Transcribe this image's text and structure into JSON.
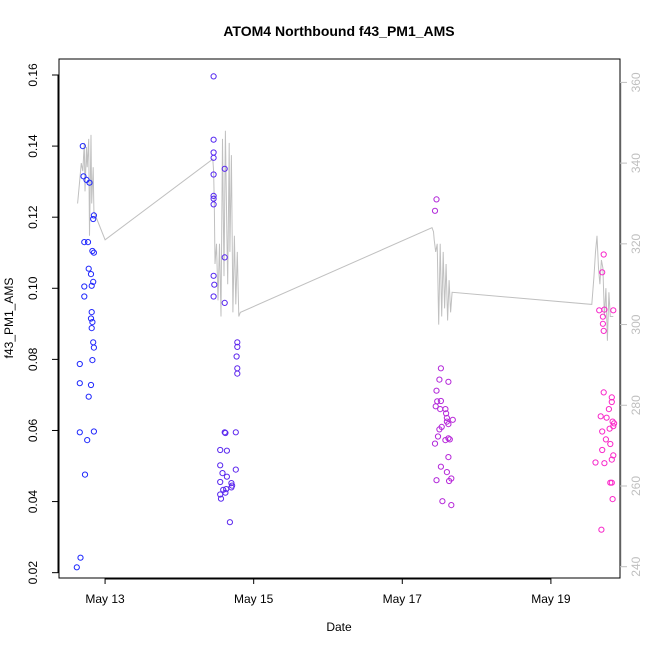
{
  "chart_data": {
    "type": "scatter",
    "title": "ATOM4 Northbound f43_PM1_AMS",
    "xlabel": "Date",
    "ylabel": "f43_PM1_AMS",
    "xlim": [
      12.38,
      19.93
    ],
    "ylim": [
      0.0185,
      0.1645
    ],
    "y2lim": [
      237.2,
      365.8
    ],
    "x_ticks": [
      {
        "value": 13,
        "label": "May 13"
      },
      {
        "value": 15,
        "label": "May 15"
      },
      {
        "value": 17,
        "label": "May 17"
      },
      {
        "value": 19,
        "label": "May 19"
      }
    ],
    "y_ticks": [
      {
        "value": 0.02,
        "label": "0.02"
      },
      {
        "value": 0.04,
        "label": "0.04"
      },
      {
        "value": 0.06,
        "label": "0.06"
      },
      {
        "value": 0.08,
        "label": "0.08"
      },
      {
        "value": 0.1,
        "label": "0.10"
      },
      {
        "value": 0.12,
        "label": "0.12"
      },
      {
        "value": 0.14,
        "label": "0.14"
      },
      {
        "value": 0.16,
        "label": "0.16"
      }
    ],
    "y2_ticks": [
      {
        "value": 240,
        "label": "240"
      },
      {
        "value": 260,
        "label": "260"
      },
      {
        "value": 280,
        "label": "280"
      },
      {
        "value": 300,
        "label": "300"
      },
      {
        "value": 320,
        "label": "320"
      },
      {
        "value": 340,
        "label": "340"
      },
      {
        "value": 360,
        "label": "360"
      }
    ],
    "points": [
      {
        "x": 12.62,
        "y": 0.0215
      },
      {
        "x": 12.67,
        "y": 0.0242
      },
      {
        "x": 12.66,
        "y": 0.0787
      },
      {
        "x": 12.66,
        "y": 0.0733
      },
      {
        "x": 12.66,
        "y": 0.0595
      },
      {
        "x": 12.7,
        "y": 0.14
      },
      {
        "x": 12.71,
        "y": 0.1315
      },
      {
        "x": 12.75,
        "y": 0.1305
      },
      {
        "x": 12.79,
        "y": 0.1297
      },
      {
        "x": 12.72,
        "y": 0.113
      },
      {
        "x": 12.77,
        "y": 0.113
      },
      {
        "x": 12.78,
        "y": 0.1055
      },
      {
        "x": 12.81,
        "y": 0.104
      },
      {
        "x": 12.83,
        "y": 0.1105
      },
      {
        "x": 12.85,
        "y": 0.11
      },
      {
        "x": 12.84,
        "y": 0.1195
      },
      {
        "x": 12.85,
        "y": 0.1205
      },
      {
        "x": 12.72,
        "y": 0.1005
      },
      {
        "x": 12.82,
        "y": 0.1007
      },
      {
        "x": 12.84,
        "y": 0.1018
      },
      {
        "x": 12.72,
        "y": 0.0977
      },
      {
        "x": 12.82,
        "y": 0.0933
      },
      {
        "x": 12.81,
        "y": 0.0915
      },
      {
        "x": 12.83,
        "y": 0.0905
      },
      {
        "x": 12.82,
        "y": 0.0888
      },
      {
        "x": 12.84,
        "y": 0.0848
      },
      {
        "x": 12.85,
        "y": 0.0833
      },
      {
        "x": 12.83,
        "y": 0.0798
      },
      {
        "x": 12.81,
        "y": 0.0728
      },
      {
        "x": 12.78,
        "y": 0.0695
      },
      {
        "x": 12.76,
        "y": 0.0573
      },
      {
        "x": 12.85,
        "y": 0.0597
      },
      {
        "x": 12.73,
        "y": 0.0476
      },
      {
        "x": 14.46,
        "y": 0.1596
      },
      {
        "x": 14.46,
        "y": 0.1418
      },
      {
        "x": 14.46,
        "y": 0.1382
      },
      {
        "x": 14.46,
        "y": 0.1367
      },
      {
        "x": 14.46,
        "y": 0.132
      },
      {
        "x": 14.46,
        "y": 0.126
      },
      {
        "x": 14.46,
        "y": 0.1252
      },
      {
        "x": 14.46,
        "y": 0.1236
      },
      {
        "x": 14.46,
        "y": 0.1035
      },
      {
        "x": 14.47,
        "y": 0.101
      },
      {
        "x": 14.46,
        "y": 0.0977
      },
      {
        "x": 14.61,
        "y": 0.1336
      },
      {
        "x": 14.61,
        "y": 0.1087
      },
      {
        "x": 14.61,
        "y": 0.0959
      },
      {
        "x": 14.78,
        "y": 0.0848
      },
      {
        "x": 14.78,
        "y": 0.0835
      },
      {
        "x": 14.77,
        "y": 0.0808
      },
      {
        "x": 14.78,
        "y": 0.0775
      },
      {
        "x": 14.78,
        "y": 0.076
      },
      {
        "x": 14.61,
        "y": 0.0595
      },
      {
        "x": 14.62,
        "y": 0.0593
      },
      {
        "x": 14.76,
        "y": 0.0595
      },
      {
        "x": 14.55,
        "y": 0.0545
      },
      {
        "x": 14.64,
        "y": 0.0543
      },
      {
        "x": 14.55,
        "y": 0.0502
      },
      {
        "x": 14.76,
        "y": 0.049
      },
      {
        "x": 14.58,
        "y": 0.048
      },
      {
        "x": 14.64,
        "y": 0.047
      },
      {
        "x": 14.55,
        "y": 0.0455
      },
      {
        "x": 14.7,
        "y": 0.0452
      },
      {
        "x": 14.71,
        "y": 0.0445
      },
      {
        "x": 14.7,
        "y": 0.044
      },
      {
        "x": 14.63,
        "y": 0.0435
      },
      {
        "x": 14.59,
        "y": 0.0433
      },
      {
        "x": 14.55,
        "y": 0.042
      },
      {
        "x": 14.62,
        "y": 0.0425
      },
      {
        "x": 14.56,
        "y": 0.0408
      },
      {
        "x": 14.68,
        "y": 0.0342
      },
      {
        "x": 17.46,
        "y": 0.125
      },
      {
        "x": 17.44,
        "y": 0.1218
      },
      {
        "x": 17.52,
        "y": 0.0775
      },
      {
        "x": 17.5,
        "y": 0.0743
      },
      {
        "x": 17.62,
        "y": 0.0737
      },
      {
        "x": 17.46,
        "y": 0.0712
      },
      {
        "x": 17.47,
        "y": 0.0682
      },
      {
        "x": 17.52,
        "y": 0.0683
      },
      {
        "x": 17.45,
        "y": 0.0668
      },
      {
        "x": 17.51,
        "y": 0.066
      },
      {
        "x": 17.58,
        "y": 0.066
      },
      {
        "x": 17.59,
        "y": 0.0648
      },
      {
        "x": 17.6,
        "y": 0.0635
      },
      {
        "x": 17.68,
        "y": 0.063
      },
      {
        "x": 17.6,
        "y": 0.0625
      },
      {
        "x": 17.62,
        "y": 0.0618
      },
      {
        "x": 17.53,
        "y": 0.061
      },
      {
        "x": 17.5,
        "y": 0.0603
      },
      {
        "x": 17.48,
        "y": 0.0583
      },
      {
        "x": 17.62,
        "y": 0.0578
      },
      {
        "x": 17.64,
        "y": 0.0575
      },
      {
        "x": 17.58,
        "y": 0.0573
      },
      {
        "x": 17.44,
        "y": 0.0563
      },
      {
        "x": 17.62,
        "y": 0.0525
      },
      {
        "x": 17.52,
        "y": 0.0498
      },
      {
        "x": 17.6,
        "y": 0.0483
      },
      {
        "x": 17.66,
        "y": 0.0465
      },
      {
        "x": 17.63,
        "y": 0.0458
      },
      {
        "x": 17.46,
        "y": 0.046
      },
      {
        "x": 17.54,
        "y": 0.0401
      },
      {
        "x": 17.66,
        "y": 0.039
      },
      {
        "x": 19.71,
        "y": 0.1095
      },
      {
        "x": 19.69,
        "y": 0.1045
      },
      {
        "x": 19.65,
        "y": 0.0938
      },
      {
        "x": 19.72,
        "y": 0.094
      },
      {
        "x": 19.7,
        "y": 0.092
      },
      {
        "x": 19.7,
        "y": 0.09
      },
      {
        "x": 19.84,
        "y": 0.0938
      },
      {
        "x": 19.71,
        "y": 0.088
      },
      {
        "x": 19.71,
        "y": 0.0707
      },
      {
        "x": 19.82,
        "y": 0.0693
      },
      {
        "x": 19.82,
        "y": 0.068
      },
      {
        "x": 19.78,
        "y": 0.066
      },
      {
        "x": 19.67,
        "y": 0.064
      },
      {
        "x": 19.75,
        "y": 0.0636
      },
      {
        "x": 19.83,
        "y": 0.0625
      },
      {
        "x": 19.85,
        "y": 0.062
      },
      {
        "x": 19.84,
        "y": 0.0612
      },
      {
        "x": 19.79,
        "y": 0.0605
      },
      {
        "x": 19.69,
        "y": 0.0597
      },
      {
        "x": 19.74,
        "y": 0.0575
      },
      {
        "x": 19.8,
        "y": 0.0562
      },
      {
        "x": 19.69,
        "y": 0.0545
      },
      {
        "x": 19.84,
        "y": 0.053
      },
      {
        "x": 19.82,
        "y": 0.0518
      },
      {
        "x": 19.6,
        "y": 0.051
      },
      {
        "x": 19.72,
        "y": 0.0508
      },
      {
        "x": 19.8,
        "y": 0.0453
      },
      {
        "x": 19.82,
        "y": 0.0453
      },
      {
        "x": 19.83,
        "y": 0.0407
      },
      {
        "x": 19.68,
        "y": 0.0321
      }
    ],
    "secondary_line": {
      "axis": "right",
      "color": "#c0c0c0",
      "x": [
        12.63,
        12.68,
        12.7,
        12.72,
        12.73,
        12.75,
        12.76,
        12.78,
        12.79,
        12.81,
        12.82,
        12.84,
        12.85,
        13.0,
        14.45,
        14.46,
        14.47,
        14.48,
        14.5,
        14.52,
        14.54,
        14.56,
        14.58,
        14.6,
        14.62,
        14.64,
        14.65,
        14.67,
        14.68,
        14.7,
        14.72,
        14.74,
        14.76,
        14.78,
        14.8,
        14.82,
        17.4,
        17.42,
        17.43,
        17.45,
        17.47,
        17.49,
        17.51,
        17.53,
        17.55,
        17.57,
        17.59,
        17.61,
        17.63,
        17.65,
        17.67,
        19.55,
        19.58,
        19.6,
        19.62,
        19.64,
        19.66,
        19.68,
        19.7,
        19.72,
        19.74,
        19.76,
        19.78,
        19.8,
        19.82,
        19.84
      ],
      "y": [
        330,
        340,
        338,
        345,
        333,
        344,
        339,
        346,
        322,
        347,
        330,
        339,
        328,
        321,
        341,
        338,
        330,
        315,
        320,
        306,
        320,
        302,
        346,
        312,
        348,
        322,
        310,
        345,
        318,
        342,
        303,
        322,
        305,
        318,
        302,
        303,
        324,
        323,
        321,
        318,
        320,
        300,
        320,
        302,
        318,
        304,
        315,
        301,
        311,
        303,
        308,
        305,
        312,
        318,
        322,
        314,
        310,
        316,
        314,
        302,
        309,
        296,
        308,
        302,
        302,
        302
      ]
    }
  }
}
